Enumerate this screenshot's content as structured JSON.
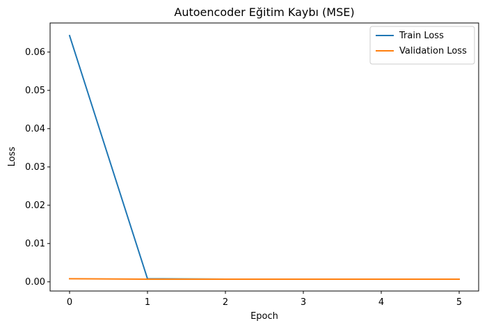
{
  "chart_data": {
    "type": "line",
    "title": "Autoencoder Eğitim Kaybı (MSE)",
    "xlabel": "Epoch",
    "ylabel": "Loss",
    "xlim": [
      -0.25,
      5.25
    ],
    "ylim": [
      -0.0024,
      0.0676
    ],
    "x_ticks": [
      "0",
      "1",
      "2",
      "3",
      "4",
      "5"
    ],
    "y_ticks": [
      "0.00",
      "0.01",
      "0.02",
      "0.03",
      "0.04",
      "0.05",
      "0.06"
    ],
    "x": [
      0,
      1,
      2,
      3,
      4,
      5
    ],
    "series": [
      {
        "name": "Train Loss",
        "color": "#1f77b4",
        "values": [
          0.0643,
          0.0008,
          0.0007,
          0.0007,
          0.0007,
          0.0007
        ]
      },
      {
        "name": "Validation Loss",
        "color": "#ff7f0e",
        "values": [
          0.0008,
          0.0007,
          0.0007,
          0.0007,
          0.0007,
          0.0007
        ]
      }
    ],
    "grid": false,
    "legend_position": "top-right"
  }
}
